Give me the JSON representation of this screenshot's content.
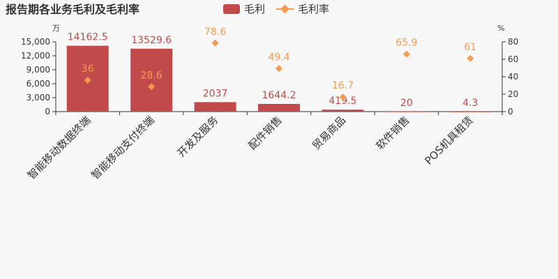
{
  "chart_data": {
    "type": "bar",
    "title": "报告期各业务毛利及毛利率",
    "categories": [
      "智能移动数据终端",
      "智能移动支付终端",
      "开发及服务",
      "配件销售",
      "贸易商品",
      "软件销售",
      "POS机具租赁"
    ],
    "series": [
      {
        "name": "毛利",
        "type": "bar",
        "axis": "left",
        "values": [
          14162.5,
          13529.6,
          2037,
          1644.2,
          419.5,
          20,
          4.3
        ],
        "labels": [
          "14162.5",
          "13529.6",
          "2037",
          "1644.2",
          "419.5",
          "20",
          "4.3"
        ]
      },
      {
        "name": "毛利率",
        "type": "scatter",
        "axis": "right",
        "values": [
          36,
          28.6,
          78.6,
          49.4,
          16.7,
          65.9,
          61
        ],
        "labels": [
          "36",
          "28.6",
          "78.6",
          "49.4",
          "16.7",
          "65.9",
          "61"
        ]
      }
    ],
    "y_left": {
      "unit": "万",
      "ylim": [
        0,
        15000
      ],
      "ticks": [
        0,
        3000,
        6000,
        9000,
        12000,
        15000
      ],
      "tick_labels": [
        "0",
        "3,000",
        "6,000",
        "9,000",
        "12,000",
        "15,000"
      ]
    },
    "y_right": {
      "unit": "%",
      "ylim": [
        0,
        80
      ],
      "ticks": [
        0,
        20,
        40,
        60,
        80
      ],
      "tick_labels": [
        "0",
        "20",
        "40",
        "60",
        "80"
      ]
    },
    "grid": false,
    "legend_position": "top-center"
  },
  "colors": {
    "bar": "#c04b4a",
    "rate": "#f39c51",
    "axis": "#333333",
    "background": "#f7f7f7"
  }
}
